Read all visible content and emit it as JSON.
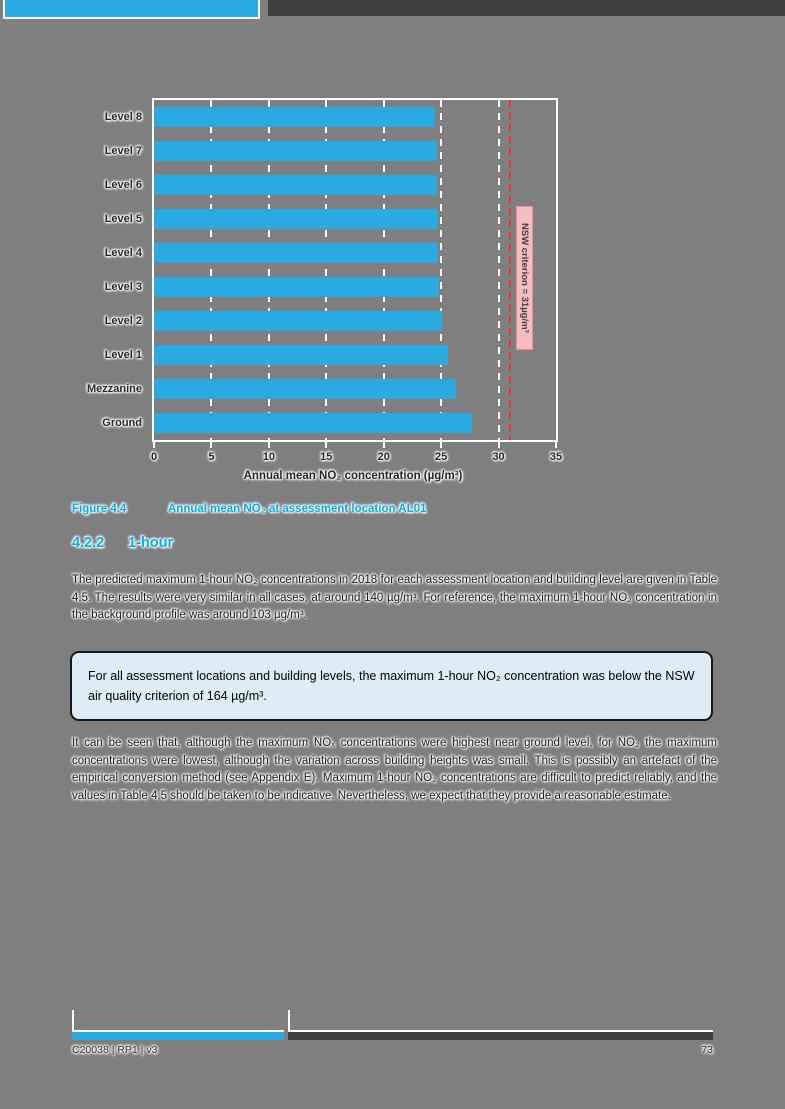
{
  "theme": {
    "page_background": "#7F7F7F",
    "accent_cyan": "#29ABE2",
    "heading_cyan": "#00AEEF",
    "dark_bar": "#3F3F3F",
    "callout_fill": "#DCEDF5"
  },
  "chart_data": {
    "type": "bar",
    "orientation": "horizontal",
    "categories": [
      "Level 8",
      "Level 7",
      "Level 6",
      "Level 5",
      "Level 4",
      "Level 3",
      "Level 2",
      "Level 1",
      "Mezzanine",
      "Ground"
    ],
    "values": [
      24.5,
      24.6,
      24.6,
      24.7,
      24.7,
      24.8,
      25.1,
      25.6,
      26.3,
      27.7
    ],
    "xlabel": "Annual mean NO₂ concentration (µg/m³)",
    "xlim": [
      0,
      35
    ],
    "xticks": [
      0,
      5,
      10,
      15,
      20,
      25,
      30,
      35
    ],
    "grid": "white dashed vertical",
    "bar_color": "#29ABE2",
    "criterion_line": {
      "value": 31,
      "label": "NSW criterion = 31µg/m³",
      "line_color": "#FF2B33",
      "box_fill": "#F6BDC1",
      "box_border": "#E89098"
    }
  },
  "figure": {
    "label": "Figure 4.4",
    "caption": "Annual mean NO₂ at assessment location AL01"
  },
  "section": {
    "number": "4.2.2",
    "title": "1-hour"
  },
  "paragraph1": "The predicted maximum 1-hour NO₂ concentrations in 2018 for each assessment location and building level are given in Table 4.5. The results were very similar in all cases, at around 140 µg/m³. For reference, the maximum 1-hour NO₂ concentration in the background profile was around 103 µg/m³.",
  "callout": "For all assessment locations and building levels, the maximum 1-hour NO₂ concentration was below the NSW air quality criterion of 164 µg/m³.",
  "paragraph2": "It can be seen that, although the maximum NOₓ concentrations were highest near ground level, for NO₂ the maximum concentrations were lowest, although the variation across building heights was small. This is possibly an artefact of the empirical conversion method (see Appendix E). Maximum 1-hour NO₂ concentrations are difficult to predict reliably, and the values in Table 4.5 should be taken to be indicative. Nevertheless, we expect that they provide a reasonable estimate.",
  "footer": {
    "doc_code": "C20038 | RP1 | v3",
    "page_number": "73"
  }
}
